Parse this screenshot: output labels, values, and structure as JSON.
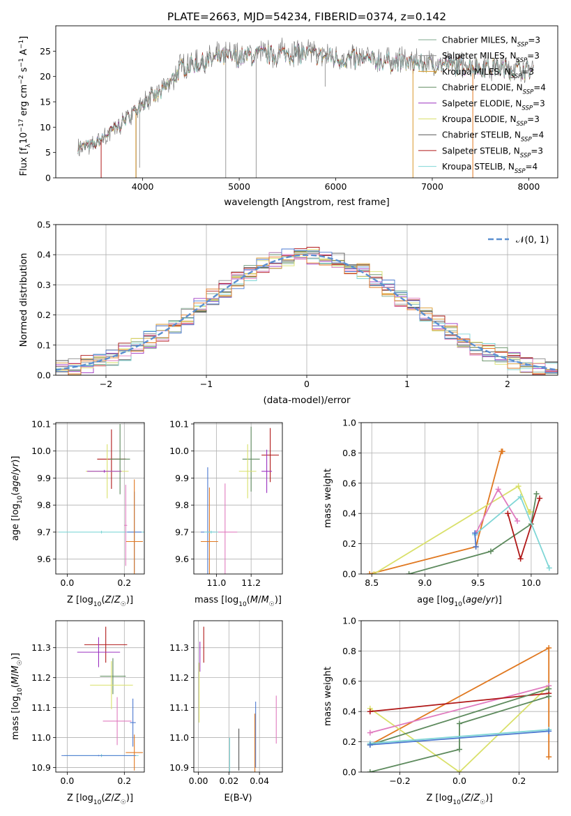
{
  "figure_title": "PLATE=2663, MJD=54234, FIBERID=0374, z=0.142",
  "colors": [
    "#7fa88e",
    "#8c8c8c",
    "#d8972a",
    "#5d8a5d",
    "#9b30c0",
    "#d9e06a",
    "#555555",
    "#b01818",
    "#7fd6d6",
    "#e07bbf",
    "#4a78d0",
    "#e07820"
  ],
  "chart_data": [
    {
      "id": "spectrum",
      "type": "line",
      "xlabel_text": "wavelength [Angstrom, rest frame]",
      "ylabel_text": "Flux [f_λ10^−17 erg cm^−2 s^−1 A^−1]",
      "xlim": [
        3100,
        8300
      ],
      "ylim": [
        0,
        30
      ],
      "xticks": [
        "4000",
        "5000",
        "6000",
        "7000",
        "8000"
      ],
      "yticks": [
        "0",
        "5",
        "10",
        "15",
        "20",
        "25"
      ],
      "continuum": {
        "x": [
          3330,
          3500,
          3600,
          3800,
          4000,
          4200,
          4400,
          4800,
          5200,
          5600,
          6000,
          6400,
          6800,
          7200,
          7600,
          8050
        ],
        "y": [
          6,
          6.5,
          8,
          11,
          15,
          17,
          22,
          24,
          24.5,
          25,
          24,
          23.5,
          23,
          22.5,
          22,
          21.5
        ]
      },
      "legend": [
        {
          "name": "Chabrier MILES",
          "sub": "SSP",
          "suffix": "=3",
          "color": "#7fa88e"
        },
        {
          "name": "Salpeter MILES",
          "sub": "SSP",
          "suffix": "=3",
          "color": "#8c8c8c"
        },
        {
          "name": "Kroupa MILES",
          "sub": "SSP",
          "suffix": "=3",
          "color": "#d8972a"
        },
        {
          "name": "Chabrier ELODIE",
          "sub": "SSP",
          "suffix": "=4",
          "color": "#5d8a5d"
        },
        {
          "name": "Salpeter ELODIE",
          "sub": "SSP",
          "suffix": "=3",
          "color": "#9b30c0"
        },
        {
          "name": "Kroupa ELODIE",
          "sub": "SSP",
          "suffix": "=3",
          "color": "#d9e06a"
        },
        {
          "name": "Chabrier STELIB",
          "sub": "SSP",
          "suffix": "=4",
          "color": "#555555"
        },
        {
          "name": "Salpeter STELIB",
          "sub": "SSP",
          "suffix": "=3",
          "color": "#b01818"
        },
        {
          "name": "Kroupa STELIB",
          "sub": "SSP",
          "suffix": "=4",
          "color": "#7fd6d6"
        }
      ]
    },
    {
      "id": "residuals",
      "type": "step",
      "xlabel_text": "(data-model)/error",
      "ylabel_text": "Normed distribution",
      "xlim": [
        -2.5,
        2.5
      ],
      "ylim": [
        0,
        0.5
      ],
      "xticks": [
        "−2",
        "−1",
        "0",
        "1",
        "2"
      ],
      "yticks": [
        "0.0",
        "0.1",
        "0.2",
        "0.3",
        "0.4",
        "0.5"
      ],
      "legend": [
        {
          "name": "𝒩(0, 1)",
          "color": "#5b8fd0",
          "dashed": true
        }
      ]
    },
    {
      "id": "age_vs_Z",
      "type": "errorbar",
      "xlabel_text": "Z [log10(Z/Z☉)]",
      "ylabel_text": "age [log10(age/yr)]",
      "xlim": [
        -0.04,
        0.27
      ],
      "ylim": [
        9.545,
        10.105
      ],
      "xticks": [
        "0.0",
        "0.2"
      ],
      "xtick_vals": [
        0,
        0.2
      ],
      "yticks": [
        "9.6",
        "9.7",
        "9.8",
        "9.9",
        "10.0",
        "10.1"
      ],
      "points": [
        {
          "x": 0.155,
          "y": 9.97,
          "dx": 0.05,
          "dy": 0.11,
          "c": "#b01818"
        },
        {
          "x": 0.185,
          "y": 9.97,
          "dx": 0.035,
          "dy": 0.13,
          "c": "#5d8a5d"
        },
        {
          "x": 0.14,
          "y": 9.925,
          "dx": 0.075,
          "dy": 0.1,
          "c": "#d9e06a"
        },
        {
          "x": 0.13,
          "y": 9.925,
          "dx": 0.06,
          "dy": 0.005,
          "c": "#9b30c0"
        },
        {
          "x": 0.12,
          "y": 9.7,
          "dx": 0.15,
          "dy": 0.005,
          "c": "#7fd6d6"
        },
        {
          "x": 0.235,
          "y": 9.7,
          "dx": 0.025,
          "dy": 0.15,
          "c": "#4a78d0"
        },
        {
          "x": 0.235,
          "y": 9.665,
          "dx": 0.03,
          "dy": 0.23,
          "c": "#e07820"
        },
        {
          "x": 0.205,
          "y": 9.725,
          "dx": 0.005,
          "dy": 0.15,
          "c": "#e07bbf"
        }
      ]
    },
    {
      "id": "age_vs_mass",
      "type": "errorbar",
      "xlabel_text": "mass [log10(M/M☉)]",
      "ylabel_text": "",
      "xlim": [
        10.87,
        11.38
      ],
      "ylim": [
        9.545,
        10.105
      ],
      "xticks": [
        "11.0",
        "11.2"
      ],
      "xtick_vals": [
        11.0,
        11.2
      ],
      "yticks": [
        "9.6",
        "9.7",
        "9.8",
        "9.9",
        "10.0",
        "10.1"
      ],
      "points": [
        {
          "x": 11.31,
          "y": 9.985,
          "dx": 0.05,
          "dy": 0.1,
          "c": "#b01818"
        },
        {
          "x": 11.2,
          "y": 9.97,
          "dx": 0.05,
          "dy": 0.12,
          "c": "#5d8a5d"
        },
        {
          "x": 11.18,
          "y": 9.925,
          "dx": 0.05,
          "dy": 0.1,
          "c": "#d9e06a"
        },
        {
          "x": 11.29,
          "y": 9.925,
          "dx": 0.03,
          "dy": 0.08,
          "c": "#9b30c0"
        },
        {
          "x": 10.95,
          "y": 9.7,
          "dx": 0.04,
          "dy": 0.24,
          "c": "#4a78d0"
        },
        {
          "x": 10.96,
          "y": 9.665,
          "dx": 0.05,
          "dy": 0.2,
          "c": "#e07820"
        },
        {
          "x": 11.05,
          "y": 9.7,
          "dx": 0.07,
          "dy": 0.18,
          "c": "#e07bbf"
        },
        {
          "x": 10.97,
          "y": 9.7,
          "dx": 0.04,
          "dy": 0.005,
          "c": "#7fd6d6"
        }
      ]
    },
    {
      "id": "weight_vs_age",
      "type": "line",
      "xlabel_text": "age [log10(age/yr)]",
      "ylabel_text": "mass weight",
      "xlim": [
        8.4,
        10.25
      ],
      "ylim": [
        0,
        1
      ],
      "xticks": [
        "8.5",
        "9.0",
        "9.5",
        "10.0"
      ],
      "xtick_vals": [
        8.5,
        9.0,
        9.5,
        10.0
      ],
      "yticks": [
        "0.0",
        "0.2",
        "0.4",
        "0.6",
        "0.8",
        "1.0"
      ],
      "series": [
        {
          "c": "#e07820",
          "x": [
            8.48,
            9.48,
            9.72,
            9.73
          ],
          "y": [
            0.0,
            0.18,
            0.81,
            0.81
          ]
        },
        {
          "c": "#d9e06a",
          "x": [
            8.52,
            9.88,
            9.98,
            9.99
          ],
          "y": [
            0.0,
            0.58,
            0.41,
            0.41
          ]
        },
        {
          "c": "#5d8a5d",
          "x": [
            8.85,
            9.62,
            10.0,
            10.05
          ],
          "y": [
            0.0,
            0.15,
            0.33,
            0.53
          ]
        },
        {
          "c": "#b01818",
          "x": [
            9.78,
            9.9,
            10.08
          ],
          "y": [
            0.4,
            0.1,
            0.5
          ]
        },
        {
          "c": "#e07bbf",
          "x": [
            9.48,
            9.69,
            9.87
          ],
          "y": [
            0.27,
            0.56,
            0.35
          ]
        },
        {
          "c": "#7fd6d6",
          "x": [
            9.47,
            9.9,
            10.17
          ],
          "y": [
            0.26,
            0.51,
            0.04
          ]
        },
        {
          "c": "#4a78d0",
          "x": [
            9.47,
            9.48
          ],
          "y": [
            0.27,
            0.18
          ]
        }
      ]
    },
    {
      "id": "mass_vs_Z",
      "type": "errorbar",
      "xlabel_text": "Z [log10(Z/Z☉)]",
      "ylabel_text": "mass [log10(M/M☉)]",
      "xlim": [
        -0.04,
        0.27
      ],
      "ylim": [
        10.885,
        11.39
      ],
      "xticks": [
        "0.0",
        "0.2"
      ],
      "xtick_vals": [
        0,
        0.2
      ],
      "yticks": [
        "10.9",
        "11.0",
        "11.1",
        "11.2",
        "11.3"
      ],
      "points": [
        {
          "x": 0.135,
          "y": 11.31,
          "dx": 0.075,
          "dy": 0.06,
          "c": "#b01818"
        },
        {
          "x": 0.11,
          "y": 11.285,
          "dx": 0.075,
          "dy": 0.05,
          "c": "#9b30c0"
        },
        {
          "x": 0.16,
          "y": 11.205,
          "dx": 0.045,
          "dy": 0.06,
          "c": "#5d8a5d"
        },
        {
          "x": 0.155,
          "y": 11.175,
          "dx": 0.075,
          "dy": 0.08,
          "c": "#d9e06a"
        },
        {
          "x": 0.175,
          "y": 11.055,
          "dx": 0.05,
          "dy": 0.08,
          "c": "#e07bbf"
        },
        {
          "x": 0.23,
          "y": 11.05,
          "dx": 0.01,
          "dy": 0.08,
          "c": "#4a78d0"
        },
        {
          "x": 0.235,
          "y": 10.95,
          "dx": 0.03,
          "dy": 0.06,
          "c": "#e07820"
        },
        {
          "x": 0.12,
          "y": 10.94,
          "dx": 0.13,
          "dy": 0.005,
          "c": "#7fd6d6"
        },
        {
          "x": 0.11,
          "y": 10.94,
          "dx": 0.13,
          "dy": 0.002,
          "c": "#4a78d0"
        }
      ]
    },
    {
      "id": "mass_vs_EBV",
      "type": "errorbar",
      "xlabel_text": "E(B-V)",
      "ylabel_text": "",
      "xlim": [
        -0.003,
        0.055
      ],
      "ylim": [
        10.885,
        11.39
      ],
      "xticks": [
        "0.00",
        "0.02",
        "0.04"
      ],
      "xtick_vals": [
        0,
        0.02,
        0.04
      ],
      "yticks": [
        "10.9",
        "11.0",
        "11.1",
        "11.2",
        "11.3"
      ],
      "points": [
        {
          "x": 0.0035,
          "y": 11.31,
          "dx": 0.0001,
          "dy": 0.06,
          "c": "#b01818"
        },
        {
          "x": 0.001,
          "y": 11.27,
          "dx": 0.0001,
          "dy": 0.05,
          "c": "#9b30c0"
        },
        {
          "x": 0.0005,
          "y": 11.15,
          "dx": 0.0001,
          "dy": 0.1,
          "c": "#d9e06a"
        },
        {
          "x": 0.0265,
          "y": 10.96,
          "dx": 0.0001,
          "dy": 0.07,
          "c": "#555555"
        },
        {
          "x": 0.0205,
          "y": 10.94,
          "dx": 0.0001,
          "dy": 0.06,
          "c": "#7fd6d6"
        },
        {
          "x": 0.0375,
          "y": 11.01,
          "dx": 0.0001,
          "dy": 0.11,
          "c": "#4a78d0"
        },
        {
          "x": 0.037,
          "y": 10.98,
          "dx": 0.0001,
          "dy": 0.1,
          "c": "#e07820"
        },
        {
          "x": 0.051,
          "y": 11.06,
          "dx": 0.0001,
          "dy": 0.08,
          "c": "#e07bbf"
        }
      ]
    },
    {
      "id": "weight_vs_Z",
      "type": "line",
      "xlabel_text": "Z [log10(Z/Z☉)]",
      "ylabel_text": "mass weight",
      "xlim": [
        -0.33,
        0.33
      ],
      "ylim": [
        0,
        1
      ],
      "xticks": [
        "−0.2",
        "0.0",
        "0.2"
      ],
      "xtick_vals": [
        -0.2,
        0,
        0.2
      ],
      "yticks": [
        "0.0",
        "0.2",
        "0.4",
        "0.6",
        "0.8",
        "1.0"
      ],
      "series": [
        {
          "c": "#e07820",
          "x": [
            -0.3,
            0.3,
            0.3
          ],
          "y": [
            0.18,
            0.82,
            0.1
          ]
        },
        {
          "c": "#d9e06a",
          "x": [
            -0.3,
            0.0,
            0.3
          ],
          "y": [
            0.42,
            0.0,
            0.57
          ]
        },
        {
          "c": "#e07bbf",
          "x": [
            -0.3,
            0.3
          ],
          "y": [
            0.26,
            0.57
          ]
        },
        {
          "c": "#b01818",
          "x": [
            -0.3,
            0.3
          ],
          "y": [
            0.4,
            0.52
          ]
        },
        {
          "c": "#5d8a5d",
          "x": [
            -0.3,
            0.0,
            0.0,
            0.3
          ],
          "y": [
            0.0,
            0.15,
            0.32,
            0.5
          ]
        },
        {
          "c": "#5d8a5d",
          "x": [
            -0.3,
            0.3
          ],
          "y": [
            0.18,
            0.55
          ]
        },
        {
          "c": "#7fd6d6",
          "x": [
            -0.3,
            0.3
          ],
          "y": [
            0.19,
            0.28
          ]
        },
        {
          "c": "#4a78d0",
          "x": [
            -0.3,
            0.3
          ],
          "y": [
            0.18,
            0.27
          ]
        }
      ]
    }
  ]
}
